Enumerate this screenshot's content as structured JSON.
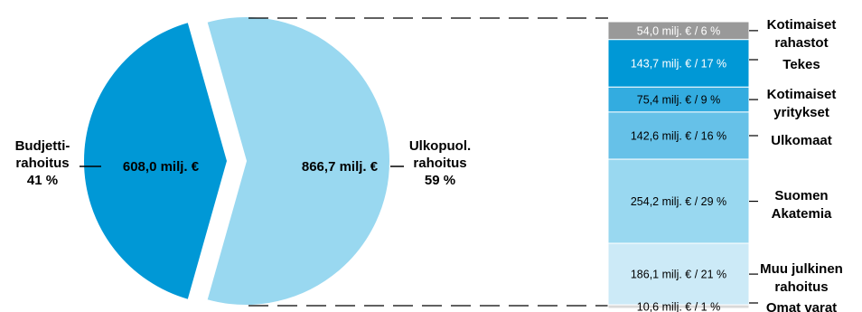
{
  "chart_data": {
    "type": "pie",
    "main": {
      "slices": [
        {
          "label_lines": [
            "Budjetti-",
            "rahoitus",
            "41 %"
          ],
          "value_text": "608,0 milj. €",
          "value": 608.0,
          "percent": 41,
          "color": "#0098d6"
        },
        {
          "label_lines": [
            "Ulkopuol.",
            "rahoitus",
            "59 %"
          ],
          "value_text": "866,7 milj. €",
          "value": 866.7,
          "percent": 59,
          "color": "#99d8f0"
        }
      ]
    },
    "breakdown": {
      "type": "stacked-bar",
      "segments": [
        {
          "label_lines": [
            "Kotimaiset",
            "rahastot"
          ],
          "value_text": "54,0 milj. € / 6 %",
          "value": 54.0,
          "percent": 6,
          "color": "#999999",
          "text_color": "#ffffff"
        },
        {
          "label_lines": [
            "Tekes"
          ],
          "value_text": "143,7 milj. € / 17 %",
          "value": 143.7,
          "percent": 17,
          "color": "#0098d6",
          "text_color": "#ffffff"
        },
        {
          "label_lines": [
            "Kotimaiset",
            "yritykset"
          ],
          "value_text": "75,4 milj. € / 9 %",
          "value": 75.4,
          "percent": 9,
          "color": "#33ace0",
          "text_color": "#000000"
        },
        {
          "label_lines": [
            "Ulkomaat"
          ],
          "value_text": "142,6 milj. € / 16 %",
          "value": 142.6,
          "percent": 16,
          "color": "#66c1e8",
          "text_color": "#000000"
        },
        {
          "label_lines": [
            "Suomen",
            "Akatemia"
          ],
          "value_text": "254,2 milj. € / 29 %",
          "value": 254.2,
          "percent": 29,
          "color": "#99d8f0",
          "text_color": "#000000"
        },
        {
          "label_lines": [
            "Muu julkinen",
            "rahoitus"
          ],
          "value_text": "186,1 milj. € / 21 %",
          "value": 186.1,
          "percent": 21,
          "color": "#cceaf7",
          "text_color": "#000000"
        },
        {
          "label_lines": [
            "Omat varat"
          ],
          "value_text": "10,6 milj. € / 1 %",
          "value": 10.6,
          "percent": 1,
          "color": "#d9d9d9",
          "text_color": "#000000"
        }
      ]
    }
  }
}
